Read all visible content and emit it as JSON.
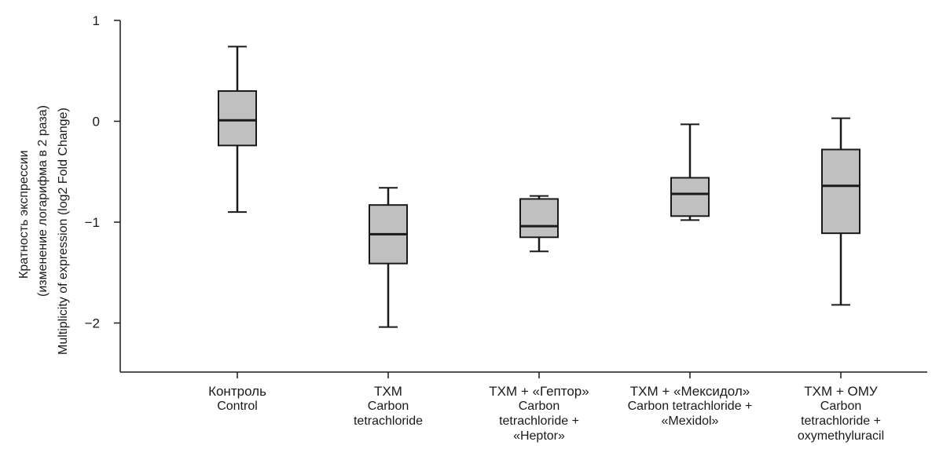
{
  "chart_data": {
    "type": "box",
    "ylabel": {
      "ru_line1": "Кратность экспрессии",
      "ru_line2": "(изменение логарифма в 2 раза)",
      "en": "Multiplicity of expression (log2 Fold Change)"
    },
    "ylim": [
      -2.5,
      1
    ],
    "yticks": [
      {
        "value": 1,
        "label": "1"
      },
      {
        "value": 0,
        "label": "0"
      },
      {
        "value": -1,
        "label": "−1"
      },
      {
        "value": -2,
        "label": "−2"
      }
    ],
    "categories": [
      {
        "ru": "Контроль",
        "en": "Control",
        "min": -0.9,
        "q1": -0.24,
        "median": 0.01,
        "q3": 0.3,
        "max": 0.74
      },
      {
        "ru": "ТХМ",
        "en": "Carbon\ntetrachloride",
        "min": -2.04,
        "q1": -1.41,
        "median": -1.12,
        "q3": -0.83,
        "max": -0.66
      },
      {
        "ru": "ТХМ + «Гептор»",
        "en": "Carbon\ntetrachloride +\n«Heptor»",
        "min": -1.29,
        "q1": -1.15,
        "median": -1.04,
        "q3": -0.77,
        "max": -0.74
      },
      {
        "ru": "ТХМ + «Мексидол»",
        "en": "Carbon tetrachloride +\n«Mexidol»",
        "min": -0.98,
        "q1": -0.94,
        "median": -0.72,
        "q3": -0.56,
        "max": -0.03
      },
      {
        "ru": "ТХМ + ОМУ",
        "en": "Carbon\ntetrachloride +\noxymethyluracil",
        "min": -1.82,
        "q1": -1.11,
        "median": -0.64,
        "q3": -0.28,
        "max": 0.03
      }
    ],
    "box_fill": "#c0c0c0",
    "line_color": "#1a1a1a",
    "grid": false
  }
}
